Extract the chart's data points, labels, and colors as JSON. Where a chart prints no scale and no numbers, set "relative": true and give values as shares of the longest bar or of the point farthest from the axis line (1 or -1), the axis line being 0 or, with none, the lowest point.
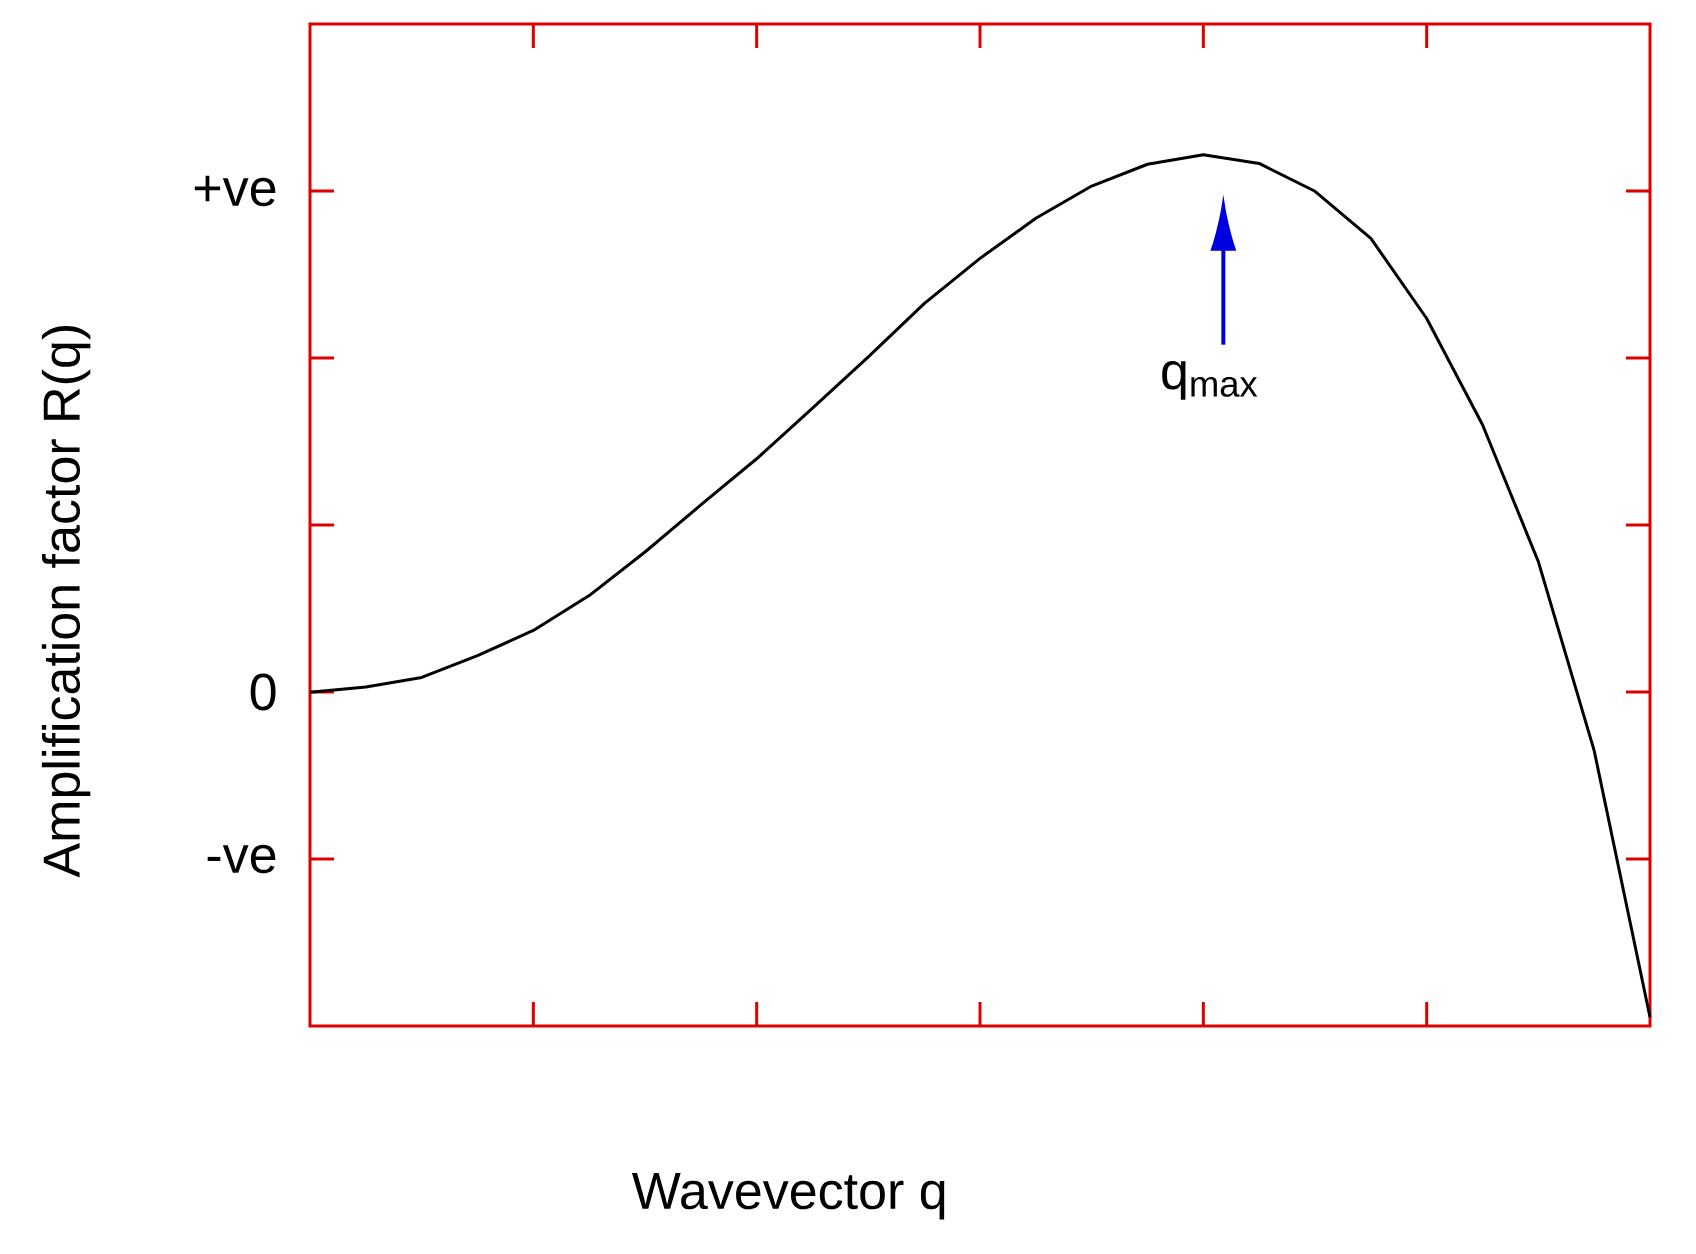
{
  "chart_data": {
    "type": "line",
    "relative": true,
    "xlabel": "Wavevector q",
    "ylabel": "Amplification factor R(q)",
    "categories": [
      null,
      null,
      null,
      null,
      null,
      null,
      null,
      null,
      null,
      null,
      null,
      null,
      null,
      null,
      null,
      null,
      null,
      null,
      null,
      null,
      null,
      null,
      null,
      null,
      null
    ],
    "marker": "none",
    "line_style": "solid",
    "series": [
      {
        "color": "#000000",
        "values": [
          0.383,
          0.389,
          0.4,
          0.425,
          0.454,
          0.494,
          0.544,
          0.598,
          0.651,
          0.709,
          0.768,
          0.829,
          0.881,
          0.927,
          0.964,
          0.989,
          1,
          0.99,
          0.958,
          0.904,
          0.812,
          0.69,
          0.533,
          0.316,
          0.01
        ]
      }
    ],
    "annotations": [
      "q$_{max}$",
      "+ve",
      "0",
      "-ve"
    ]
  }
}
